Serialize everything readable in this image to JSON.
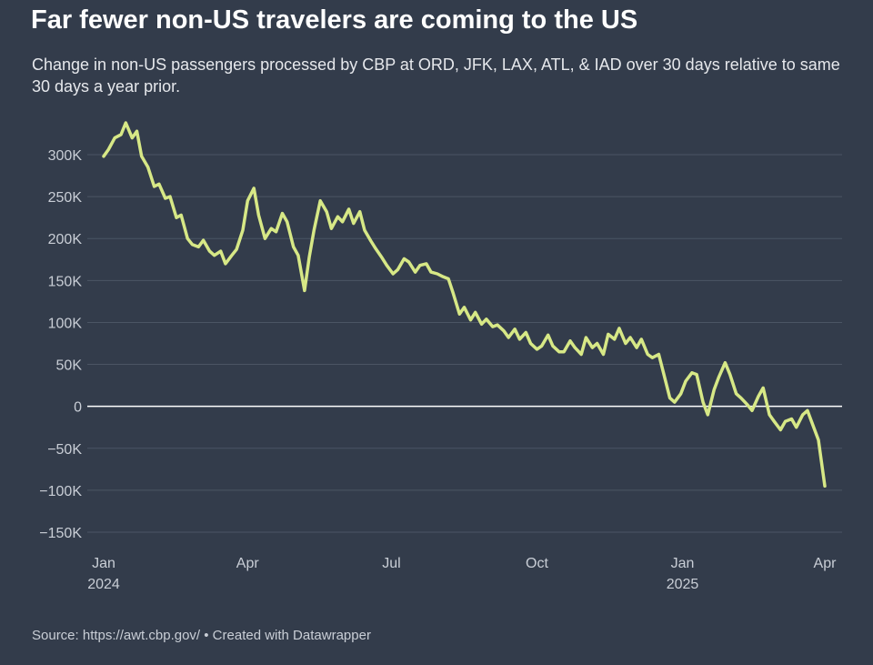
{
  "title": "Far fewer non-US travelers are coming to the US",
  "subtitle": "Change in non-US passengers processed by CBP at ORD, JFK, LAX, ATL, & IAD over 30 days relative to same 30 days a year prior.",
  "source": "Source: https://awt.cbp.gov/ • Created with Datawrapper",
  "colors": {
    "background": "#333c4b",
    "line": "#d7e886",
    "grid": "#4b5564",
    "zero_line": "#ffffff",
    "text": "#c9ced6"
  },
  "chart_data": {
    "type": "line",
    "title": "Far fewer non-US travelers are coming to the US",
    "subtitle": "Change in non-US passengers processed by CBP at ORD, JFK, LAX, ATL, & IAD over 30 days relative to same 30 days a year prior.",
    "xlabel": "",
    "ylabel": "",
    "ylim": [
      -150000,
      300000
    ],
    "xlim": [
      "2024-01-01",
      "2025-04-01"
    ],
    "grid": true,
    "legend": "none",
    "y_ticks": [
      {
        "value": 300000,
        "label": "300K"
      },
      {
        "value": 250000,
        "label": "250K"
      },
      {
        "value": 200000,
        "label": "200K"
      },
      {
        "value": 150000,
        "label": "150K"
      },
      {
        "value": 100000,
        "label": "100K"
      },
      {
        "value": 50000,
        "label": "50K"
      },
      {
        "value": 0,
        "label": "0"
      },
      {
        "value": -50000,
        "label": "−50K"
      },
      {
        "value": -100000,
        "label": "−100K"
      },
      {
        "value": -150000,
        "label": "−150K"
      }
    ],
    "x_ticks": [
      {
        "value": "2024-01-01",
        "label": "Jan",
        "sub": "2024"
      },
      {
        "value": "2024-04-01",
        "label": "Apr",
        "sub": ""
      },
      {
        "value": "2024-07-01",
        "label": "Jul",
        "sub": ""
      },
      {
        "value": "2024-10-01",
        "label": "Oct",
        "sub": ""
      },
      {
        "value": "2025-01-01",
        "label": "Jan",
        "sub": "2025"
      },
      {
        "value": "2025-04-01",
        "label": "Apr",
        "sub": ""
      }
    ],
    "x": [
      "2024-01-01",
      "2024-01-04",
      "2024-01-08",
      "2024-01-12",
      "2024-01-15",
      "2024-01-19",
      "2024-01-22",
      "2024-01-25",
      "2024-01-29",
      "2024-02-02",
      "2024-02-05",
      "2024-02-09",
      "2024-02-12",
      "2024-02-16",
      "2024-02-19",
      "2024-02-23",
      "2024-02-26",
      "2024-03-01",
      "2024-03-04",
      "2024-03-08",
      "2024-03-11",
      "2024-03-15",
      "2024-03-18",
      "2024-03-22",
      "2024-03-25",
      "2024-03-29",
      "2024-04-01",
      "2024-04-05",
      "2024-04-08",
      "2024-04-12",
      "2024-04-16",
      "2024-04-19",
      "2024-04-23",
      "2024-04-26",
      "2024-04-30",
      "2024-05-03",
      "2024-05-07",
      "2024-05-10",
      "2024-05-13",
      "2024-05-17",
      "2024-05-21",
      "2024-05-24",
      "2024-05-28",
      "2024-05-31",
      "2024-06-04",
      "2024-06-07",
      "2024-06-11",
      "2024-06-14",
      "2024-06-18",
      "2024-06-21",
      "2024-06-25",
      "2024-06-28",
      "2024-07-02",
      "2024-07-05",
      "2024-07-09",
      "2024-07-12",
      "2024-07-16",
      "2024-07-19",
      "2024-07-23",
      "2024-07-26",
      "2024-07-30",
      "2024-08-02",
      "2024-08-06",
      "2024-08-09",
      "2024-08-13",
      "2024-08-16",
      "2024-08-20",
      "2024-08-23",
      "2024-08-27",
      "2024-08-30",
      "2024-09-03",
      "2024-09-06",
      "2024-09-10",
      "2024-09-13",
      "2024-09-17",
      "2024-09-20",
      "2024-09-24",
      "2024-09-27",
      "2024-10-01",
      "2024-10-04",
      "2024-10-08",
      "2024-10-11",
      "2024-10-15",
      "2024-10-18",
      "2024-10-22",
      "2024-10-25",
      "2024-10-29",
      "2024-11-01",
      "2024-11-05",
      "2024-11-08",
      "2024-11-12",
      "2024-11-15",
      "2024-11-19",
      "2024-11-22",
      "2024-11-26",
      "2024-11-29",
      "2024-12-03",
      "2024-12-06",
      "2024-12-10",
      "2024-12-13",
      "2024-12-17",
      "2024-12-20",
      "2024-12-24",
      "2024-12-27",
      "2024-12-31",
      "2025-01-03",
      "2025-01-07",
      "2025-01-10",
      "2025-01-14",
      "2025-01-17",
      "2025-01-21",
      "2025-01-24",
      "2025-01-28",
      "2025-01-31",
      "2025-02-04",
      "2025-02-07",
      "2025-02-11",
      "2025-02-14",
      "2025-02-18",
      "2025-02-21",
      "2025-02-25",
      "2025-02-28",
      "2025-03-04",
      "2025-03-07",
      "2025-03-11",
      "2025-03-14",
      "2025-03-18",
      "2025-03-21",
      "2025-03-25",
      "2025-03-28",
      "2025-04-01"
    ],
    "series": [
      {
        "values": [
          298000,
          306000,
          320000,
          324000,
          338000,
          320000,
          328000,
          298000,
          285000,
          262000,
          265000,
          248000,
          250000,
          225000,
          228000,
          200000,
          193000,
          190000,
          198000,
          185000,
          180000,
          185000,
          170000,
          180000,
          187000,
          210000,
          245000,
          260000,
          228000,
          200000,
          212000,
          208000,
          230000,
          220000,
          190000,
          180000,
          138000,
          178000,
          210000,
          245000,
          232000,
          212000,
          226000,
          220000,
          235000,
          218000,
          232000,
          210000,
          197000,
          188000,
          177000,
          168000,
          158000,
          163000,
          176000,
          172000,
          160000,
          168000,
          170000,
          160000,
          158000,
          155000,
          152000,
          135000,
          110000,
          118000,
          103000,
          112000,
          98000,
          104000,
          95000,
          97000,
          90000,
          82000,
          92000,
          80000,
          88000,
          75000,
          68000,
          72000,
          85000,
          72000,
          65000,
          65000,
          78000,
          70000,
          62000,
          82000,
          70000,
          75000,
          62000,
          86000,
          80000,
          93000,
          75000,
          82000,
          70000,
          80000,
          62000,
          58000,
          62000,
          40000,
          10000,
          5000,
          15000,
          30000,
          40000,
          38000,
          5000,
          -10000,
          20000,
          35000,
          52000,
          38000,
          15000,
          10000,
          2000,
          -5000,
          12000,
          22000,
          -10000,
          -18000,
          -28000,
          -18000,
          -15000,
          -25000,
          -10000,
          -5000,
          -25000,
          -40000,
          -95000
        ]
      }
    ]
  }
}
